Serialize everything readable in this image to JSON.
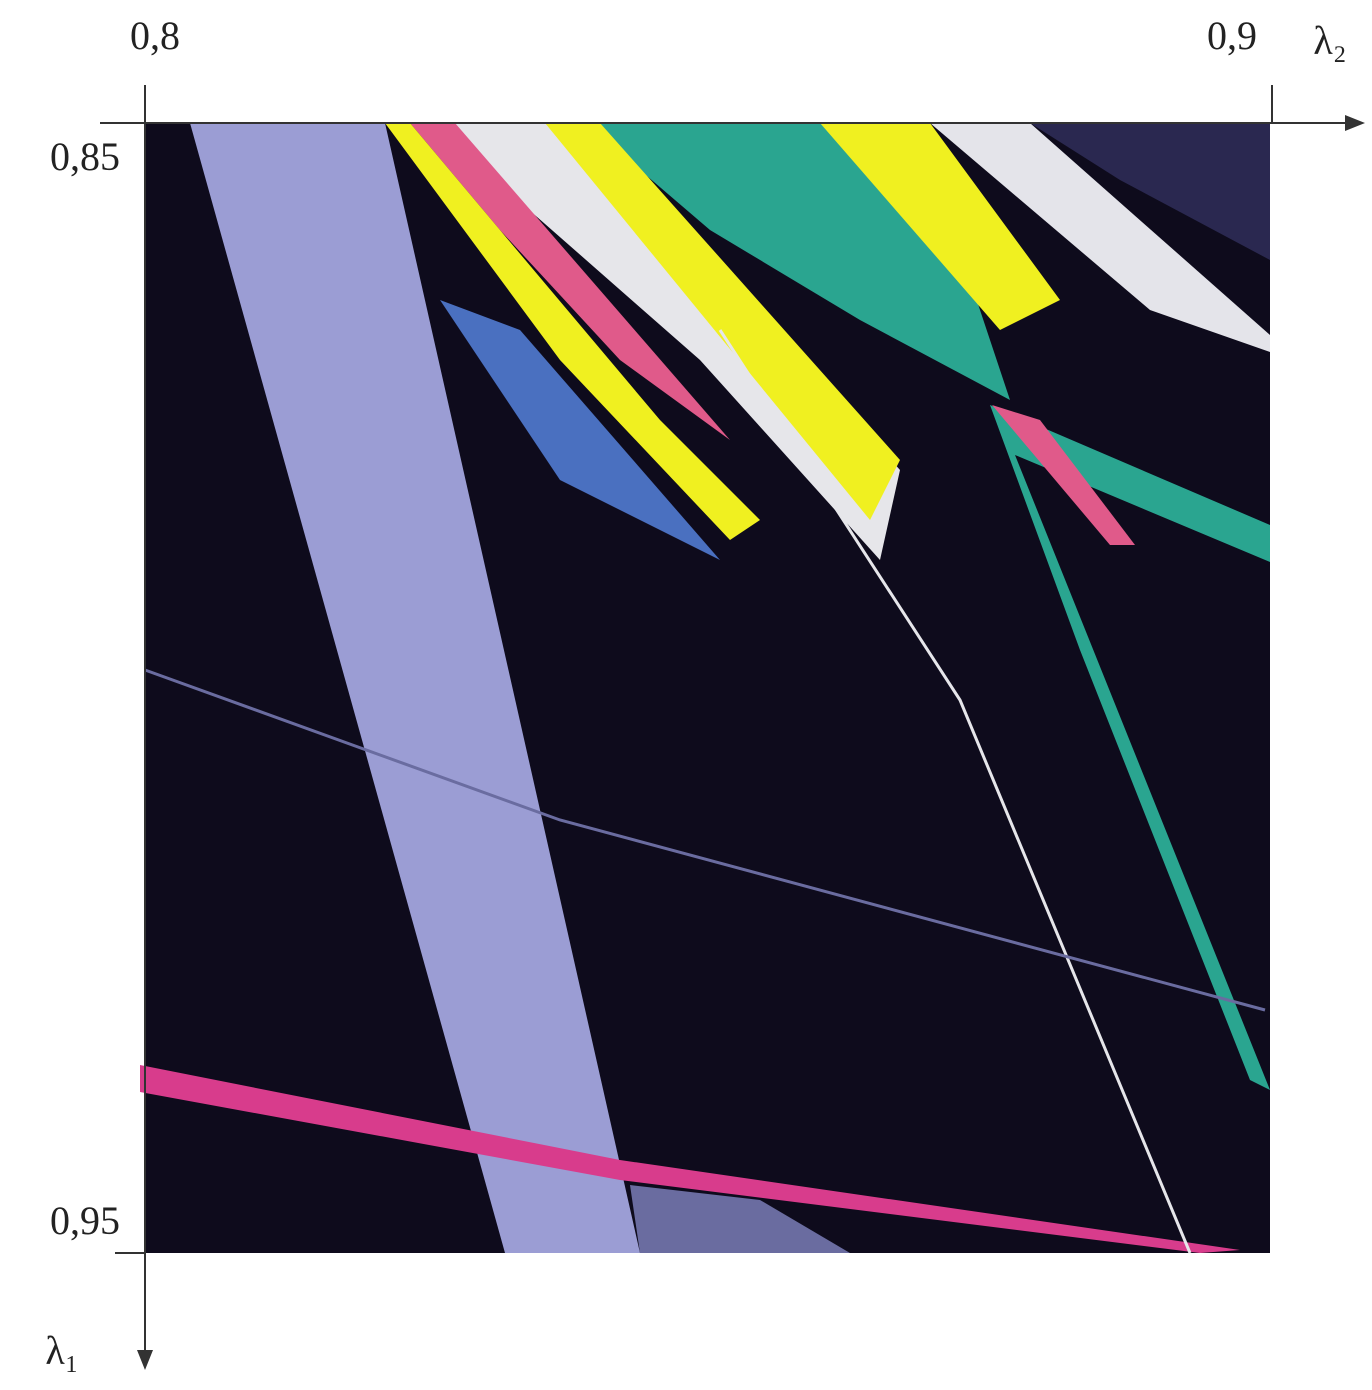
{
  "chart_data": {
    "type": "parameter-map",
    "x_label": "λ₂",
    "y_label": "λ₁",
    "xlim": [
      0.8,
      0.9
    ],
    "ylim": [
      0.85,
      0.95
    ],
    "xticks": [
      {
        "value": 0.8,
        "label": "0,8"
      },
      {
        "value": 0.9,
        "label": "0,9"
      }
    ],
    "yticks": [
      {
        "value": 0.85,
        "label": "0,85"
      },
      {
        "value": 0.95,
        "label": "0,95"
      }
    ]
  }
}
